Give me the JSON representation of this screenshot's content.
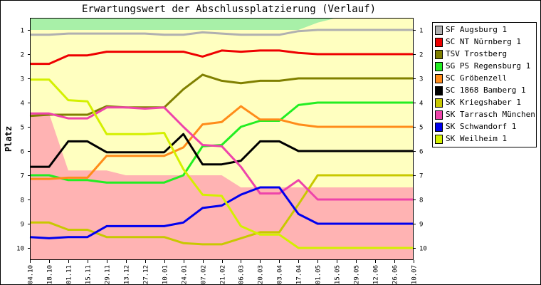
{
  "chart_data": {
    "type": "line",
    "title": "Erwartungswert der Abschlussplatzierung (Verlauf)",
    "ylabel": "Platz",
    "xlabel": "",
    "y_inverted": true,
    "ylim": [
      0.5,
      10.5
    ],
    "y_ticks": [
      1,
      2,
      3,
      4,
      5,
      6,
      7,
      8,
      9,
      10
    ],
    "grid": false,
    "legend_position": "right",
    "categories": [
      "04.10",
      "18.10",
      "01.11",
      "15.11",
      "29.11",
      "13.12",
      "27.12",
      "10.01",
      "24.01",
      "07.02",
      "21.02",
      "06.03",
      "20.03",
      "03.04",
      "17.04",
      "01.05",
      "15.05",
      "29.05",
      "12.06",
      "26.06",
      "10.07"
    ],
    "bands": [
      {
        "color": "#a8f0a8",
        "min_place": [
          0.5,
          0.5,
          0.5,
          0.5,
          0.5,
          0.5,
          0.5,
          0.5,
          0.5,
          0.5,
          0.5,
          0.5,
          0.5,
          0.5,
          0.5,
          0.5,
          0.5,
          0.5,
          0.5,
          0.5,
          0.5
        ],
        "max_place": [
          1.0,
          1.0,
          1.0,
          1.0,
          1.0,
          1.0,
          1.0,
          1.0,
          1.0,
          1.0,
          1.0,
          1.0,
          1.0,
          1.0,
          1.0,
          0.7,
          0.5,
          0.5,
          0.5,
          0.5,
          0.5
        ]
      },
      {
        "color": "#ffb3b3",
        "min_place": [
          4.45,
          4.45,
          6.8,
          6.8,
          6.8,
          7.0,
          7.0,
          7.0,
          7.0,
          7.0,
          7.0,
          7.5,
          7.5,
          7.5,
          7.5,
          7.5,
          7.5,
          7.5,
          7.5,
          7.5,
          7.5
        ],
        "max_place": [
          10.5,
          10.5,
          10.5,
          10.5,
          10.5,
          10.5,
          10.5,
          10.5,
          10.5,
          10.5,
          10.5,
          10.5,
          10.5,
          10.5,
          10.5,
          10.5,
          10.5,
          10.5,
          10.5,
          10.5,
          10.5
        ]
      }
    ],
    "series": [
      {
        "name": "SF Augsburg 1",
        "color": "#b0b0b0",
        "values": [
          1.2,
          1.2,
          1.15,
          1.15,
          1.15,
          1.15,
          1.15,
          1.2,
          1.2,
          1.1,
          1.15,
          1.2,
          1.2,
          1.2,
          1.05,
          1.0,
          1.0,
          1.0,
          1.0,
          1.0,
          1.0
        ]
      },
      {
        "name": "SC NT Nürnberg 1",
        "color": "#ee0000",
        "values": [
          2.4,
          2.4,
          2.05,
          2.05,
          1.9,
          1.9,
          1.9,
          1.9,
          1.9,
          2.1,
          1.85,
          1.9,
          1.85,
          1.85,
          1.95,
          2.0,
          2.0,
          2.0,
          2.0,
          2.0,
          2.0
        ]
      },
      {
        "name": "TSV Trostberg",
        "color": "#808000",
        "values": [
          4.55,
          4.5,
          4.5,
          4.5,
          4.15,
          4.2,
          4.2,
          4.2,
          3.45,
          2.85,
          3.1,
          3.2,
          3.1,
          3.1,
          3.0,
          3.0,
          3.0,
          3.0,
          3.0,
          3.0,
          3.0
        ]
      },
      {
        "name": "SG PS Regensburg 1",
        "color": "#22ee22",
        "values": [
          7.0,
          7.0,
          7.2,
          7.2,
          7.3,
          7.3,
          7.3,
          7.3,
          7.0,
          5.8,
          5.75,
          5.0,
          4.75,
          4.75,
          4.1,
          4.0,
          4.0,
          4.0,
          4.0,
          4.0,
          4.0
        ]
      },
      {
        "name": "SC Gröbenzell",
        "color": "#ff8c1a",
        "values": [
          7.15,
          7.15,
          7.1,
          7.1,
          6.2,
          6.2,
          6.2,
          6.2,
          5.85,
          4.9,
          4.8,
          4.15,
          4.7,
          4.7,
          4.9,
          5.0,
          5.0,
          5.0,
          5.0,
          5.0,
          5.0
        ]
      },
      {
        "name": "SC 1868 Bamberg 1",
        "color": "#000000",
        "values": [
          6.65,
          6.65,
          5.6,
          5.6,
          6.05,
          6.05,
          6.05,
          6.05,
          5.3,
          6.55,
          6.55,
          6.4,
          5.6,
          5.6,
          6.0,
          6.0,
          6.0,
          6.0,
          6.0,
          6.0,
          6.0
        ]
      },
      {
        "name": "SK Kriegshaber 1",
        "color": "#c8c800",
        "values": [
          8.95,
          8.95,
          9.25,
          9.25,
          9.55,
          9.55,
          9.55,
          9.55,
          9.8,
          9.85,
          9.85,
          9.6,
          9.35,
          9.35,
          8.2,
          7.0,
          7.0,
          7.0,
          7.0,
          7.0,
          7.0
        ]
      },
      {
        "name": "SK Tarrasch München 1",
        "color": "#ee44aa",
        "values": [
          4.45,
          4.45,
          4.65,
          4.65,
          4.2,
          4.2,
          4.25,
          4.2,
          5.0,
          5.75,
          5.8,
          6.65,
          7.75,
          7.75,
          7.2,
          8.0,
          8.0,
          8.0,
          8.0,
          8.0,
          8.0
        ]
      },
      {
        "name": "SK Schwandorf 1",
        "color": "#0000ee",
        "values": [
          9.55,
          9.6,
          9.55,
          9.55,
          9.1,
          9.1,
          9.1,
          9.1,
          8.95,
          8.35,
          8.25,
          7.8,
          7.5,
          7.5,
          8.6,
          9.0,
          9.0,
          9.0,
          9.0,
          9.0,
          9.0
        ]
      },
      {
        "name": "SK Weilheim 1",
        "color": "#d4f000",
        "values": [
          3.05,
          3.05,
          3.9,
          3.95,
          5.3,
          5.3,
          5.3,
          5.25,
          6.75,
          7.8,
          7.85,
          9.1,
          9.45,
          9.45,
          10.0,
          10.0,
          10.0,
          10.0,
          10.0,
          10.0,
          10.0
        ]
      }
    ]
  }
}
